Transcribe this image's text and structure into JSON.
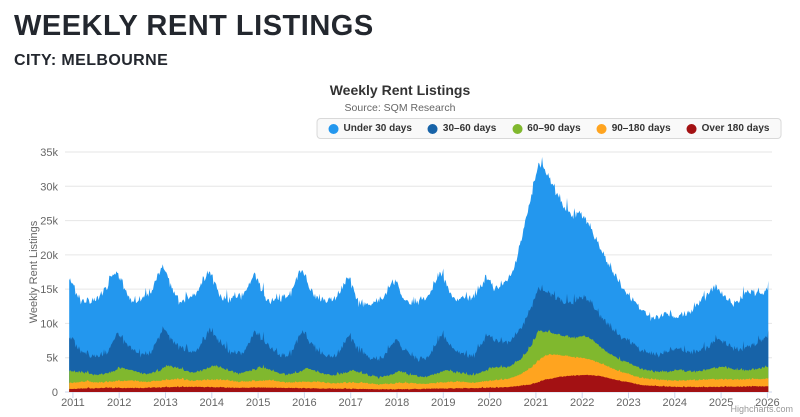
{
  "page": {
    "title": "WEEKLY RENT LISTINGS",
    "subtitle": "CITY: MELBOURNE"
  },
  "chart": {
    "title": "Weekly Rent Listings",
    "subtitle": "Source: SQM Research",
    "credits": "Highcharts.com"
  },
  "chart_data": {
    "type": "area",
    "stacked": true,
    "stack_order": "last series at bottom, first series on top",
    "title": "Weekly Rent Listings",
    "subtitle": "Source: SQM Research",
    "xlabel": "",
    "ylabel": "Weekly Rent Listings",
    "ylim": [
      0,
      35000
    ],
    "y_tick_labels": [
      "0",
      "5k",
      "10k",
      "15k",
      "20k",
      "25k",
      "30k",
      "35k"
    ],
    "x_tick_labels": [
      "2011",
      "2012",
      "2013",
      "2014",
      "2015",
      "2016",
      "2017",
      "2018",
      "2019",
      "2020",
      "2021",
      "2022",
      "2023",
      "2024",
      "2025",
      "2026"
    ],
    "x_range_years": [
      2010.92,
      2026.02
    ],
    "grid": true,
    "legend_position": "top",
    "value_unit": "thousands of listings, weekly data",
    "colors": {
      "grid": "#e6e6e6",
      "axis": "#ccd6eb",
      "axis_text": "#666666"
    },
    "series": [
      {
        "name": "Under 30 days",
        "color": "#2397ee",
        "noise": 0.35,
        "keyframes": [
          [
            2010.92,
            8.6
          ],
          [
            2011.0,
            8.0
          ],
          [
            2011.2,
            7.2
          ],
          [
            2011.5,
            8.3
          ],
          [
            2011.85,
            10.0
          ],
          [
            2012.0,
            8.5
          ],
          [
            2012.25,
            6.7
          ],
          [
            2012.55,
            8.5
          ],
          [
            2012.9,
            9.4
          ],
          [
            2013.05,
            8.2
          ],
          [
            2013.3,
            6.5
          ],
          [
            2013.6,
            8.3
          ],
          [
            2013.9,
            8.8
          ],
          [
            2014.2,
            6.5
          ],
          [
            2014.5,
            8.3
          ],
          [
            2014.9,
            8.5
          ],
          [
            2015.2,
            6.3
          ],
          [
            2015.5,
            8.4
          ],
          [
            2015.9,
            9.2
          ],
          [
            2016.2,
            7.4
          ],
          [
            2016.5,
            8.2
          ],
          [
            2016.9,
            8.7
          ],
          [
            2017.2,
            6.7
          ],
          [
            2017.5,
            8.3
          ],
          [
            2017.9,
            9.0
          ],
          [
            2018.2,
            7.0
          ],
          [
            2018.5,
            8.6
          ],
          [
            2018.9,
            9.2
          ],
          [
            2019.2,
            7.25
          ],
          [
            2019.5,
            8.4
          ],
          [
            2019.9,
            8.6
          ],
          [
            2020.1,
            7.4
          ],
          [
            2020.35,
            8.8
          ],
          [
            2020.55,
            10.3
          ],
          [
            2020.75,
            14.0
          ],
          [
            2020.9,
            16.2
          ],
          [
            2021.05,
            18.1
          ],
          [
            2021.15,
            18.0
          ],
          [
            2021.3,
            16.7
          ],
          [
            2021.45,
            15.2
          ],
          [
            2021.6,
            13.8
          ],
          [
            2021.8,
            12.7
          ],
          [
            2021.95,
            12.4
          ],
          [
            2022.1,
            11.35
          ],
          [
            2022.3,
            10.1
          ],
          [
            2022.5,
            9.2
          ],
          [
            2022.75,
            7.9
          ],
          [
            2022.95,
            6.8
          ],
          [
            2023.2,
            6.0
          ],
          [
            2023.5,
            5.2
          ],
          [
            2023.8,
            5.8
          ],
          [
            2024.05,
            4.4
          ],
          [
            2024.3,
            5.7
          ],
          [
            2024.6,
            7.5
          ],
          [
            2024.85,
            7.9
          ],
          [
            2025.05,
            6.6
          ],
          [
            2025.25,
            6.5
          ],
          [
            2025.5,
            7.85
          ],
          [
            2025.7,
            7.85
          ],
          [
            2025.9,
            6.55
          ],
          [
            2026.02,
            7.1
          ]
        ]
      },
      {
        "name": "30–60 days",
        "color": "#1763a8",
        "noise": 0.5,
        "keyframes": [
          [
            2010.92,
            5.0
          ],
          [
            2011.0,
            4.5
          ],
          [
            2011.15,
            3.2
          ],
          [
            2011.4,
            2.6
          ],
          [
            2011.7,
            2.8
          ],
          [
            2011.95,
            5.2
          ],
          [
            2012.1,
            3.8
          ],
          [
            2012.4,
            2.7
          ],
          [
            2012.7,
            3.0
          ],
          [
            2012.95,
            5.8
          ],
          [
            2013.1,
            4.0
          ],
          [
            2013.4,
            2.8
          ],
          [
            2013.7,
            3.0
          ],
          [
            2013.95,
            5.6
          ],
          [
            2014.1,
            4.0
          ],
          [
            2014.4,
            2.8
          ],
          [
            2014.7,
            3.0
          ],
          [
            2014.95,
            5.5
          ],
          [
            2015.1,
            3.9
          ],
          [
            2015.4,
            2.7
          ],
          [
            2015.7,
            2.9
          ],
          [
            2015.95,
            5.9
          ],
          [
            2016.1,
            4.0
          ],
          [
            2016.4,
            2.7
          ],
          [
            2016.7,
            2.8
          ],
          [
            2016.95,
            5.2
          ],
          [
            2017.1,
            3.6
          ],
          [
            2017.4,
            2.5
          ],
          [
            2017.7,
            2.7
          ],
          [
            2017.95,
            5.0
          ],
          [
            2018.1,
            3.5
          ],
          [
            2018.4,
            2.5
          ],
          [
            2018.7,
            2.8
          ],
          [
            2018.95,
            5.4
          ],
          [
            2019.1,
            3.8
          ],
          [
            2019.4,
            2.7
          ],
          [
            2019.7,
            2.9
          ],
          [
            2019.95,
            5.3
          ],
          [
            2020.1,
            4.0
          ],
          [
            2020.4,
            3.5
          ],
          [
            2020.7,
            4.5
          ],
          [
            2020.9,
            5.5
          ],
          [
            2021.05,
            6.3
          ],
          [
            2021.2,
            5.8
          ],
          [
            2021.4,
            5.3
          ],
          [
            2021.6,
            5.0
          ],
          [
            2021.8,
            5.2
          ],
          [
            2021.95,
            5.8
          ],
          [
            2022.1,
            5.4
          ],
          [
            2022.3,
            4.8
          ],
          [
            2022.6,
            4.0
          ],
          [
            2022.9,
            3.3
          ],
          [
            2023.1,
            3.0
          ],
          [
            2023.4,
            2.6
          ],
          [
            2023.7,
            2.5
          ],
          [
            2023.95,
            3.3
          ],
          [
            2024.1,
            3.0
          ],
          [
            2024.4,
            2.8
          ],
          [
            2024.7,
            3.3
          ],
          [
            2024.95,
            4.2
          ],
          [
            2025.1,
            3.4
          ],
          [
            2025.4,
            3.0
          ],
          [
            2025.7,
            3.4
          ],
          [
            2025.95,
            4.3
          ],
          [
            2026.02,
            4.2
          ]
        ]
      },
      {
        "name": "60–90 days",
        "color": "#80b82e",
        "noise": 0.15,
        "keyframes": [
          [
            2010.92,
            1.8
          ],
          [
            2011.0,
            1.6
          ],
          [
            2011.2,
            1.3
          ],
          [
            2011.5,
            1.1
          ],
          [
            2011.8,
            1.3
          ],
          [
            2012.05,
            1.9
          ],
          [
            2012.3,
            1.4
          ],
          [
            2012.6,
            1.1
          ],
          [
            2012.9,
            1.5
          ],
          [
            2013.05,
            2.1
          ],
          [
            2013.3,
            1.5
          ],
          [
            2013.6,
            1.2
          ],
          [
            2013.9,
            1.6
          ],
          [
            2014.05,
            2.1
          ],
          [
            2014.3,
            1.5
          ],
          [
            2014.6,
            1.2
          ],
          [
            2014.9,
            1.6
          ],
          [
            2015.05,
            2.0
          ],
          [
            2015.3,
            1.4
          ],
          [
            2015.6,
            1.1
          ],
          [
            2015.9,
            1.5
          ],
          [
            2016.05,
            2.0
          ],
          [
            2016.3,
            1.4
          ],
          [
            2016.6,
            1.1
          ],
          [
            2016.9,
            1.4
          ],
          [
            2017.05,
            1.8
          ],
          [
            2017.3,
            1.3
          ],
          [
            2017.6,
            1.0
          ],
          [
            2017.9,
            1.3
          ],
          [
            2018.05,
            1.7
          ],
          [
            2018.3,
            1.2
          ],
          [
            2018.6,
            1.0
          ],
          [
            2018.9,
            1.4
          ],
          [
            2019.05,
            1.8
          ],
          [
            2019.3,
            1.3
          ],
          [
            2019.6,
            1.1
          ],
          [
            2019.9,
            1.5
          ],
          [
            2020.05,
            1.9
          ],
          [
            2020.4,
            1.7
          ],
          [
            2020.7,
            2.2
          ],
          [
            2020.9,
            3.2
          ],
          [
            2021.05,
            4.3
          ],
          [
            2021.2,
            3.5
          ],
          [
            2021.4,
            3.0
          ],
          [
            2021.6,
            2.9
          ],
          [
            2021.85,
            2.8
          ],
          [
            2022.05,
            3.3
          ],
          [
            2022.2,
            3.0
          ],
          [
            2022.5,
            2.1
          ],
          [
            2022.8,
            1.7
          ],
          [
            2023.05,
            1.6
          ],
          [
            2023.3,
            1.3
          ],
          [
            2023.6,
            1.1
          ],
          [
            2023.9,
            1.3
          ],
          [
            2024.05,
            1.6
          ],
          [
            2024.3,
            1.3
          ],
          [
            2024.6,
            1.3
          ],
          [
            2024.9,
            1.7
          ],
          [
            2025.05,
            1.8
          ],
          [
            2025.3,
            1.4
          ],
          [
            2025.6,
            1.3
          ],
          [
            2025.9,
            1.6
          ],
          [
            2026.02,
            1.7
          ]
        ]
      },
      {
        "name": "90–180 days",
        "color": "#ffa41f",
        "noise": 0.1,
        "keyframes": [
          [
            2010.92,
            0.95
          ],
          [
            2011.0,
            0.9
          ],
          [
            2011.3,
            1.0
          ],
          [
            2011.6,
            0.8
          ],
          [
            2012.0,
            1.0
          ],
          [
            2012.3,
            1.1
          ],
          [
            2012.6,
            0.85
          ],
          [
            2013.0,
            1.05
          ],
          [
            2013.3,
            1.15
          ],
          [
            2013.6,
            0.9
          ],
          [
            2014.0,
            1.1
          ],
          [
            2014.3,
            1.1
          ],
          [
            2014.6,
            0.85
          ],
          [
            2015.0,
            1.0
          ],
          [
            2015.3,
            1.05
          ],
          [
            2015.6,
            0.8
          ],
          [
            2016.0,
            0.95
          ],
          [
            2016.3,
            1.0
          ],
          [
            2016.6,
            0.75
          ],
          [
            2017.0,
            0.9
          ],
          [
            2017.3,
            0.9
          ],
          [
            2017.6,
            0.7
          ],
          [
            2018.0,
            0.85
          ],
          [
            2018.3,
            0.9
          ],
          [
            2018.6,
            0.7
          ],
          [
            2019.0,
            0.9
          ],
          [
            2019.3,
            0.95
          ],
          [
            2019.6,
            0.8
          ],
          [
            2020.0,
            1.0
          ],
          [
            2020.4,
            1.2
          ],
          [
            2020.7,
            1.7
          ],
          [
            2020.9,
            2.4
          ],
          [
            2021.1,
            3.3
          ],
          [
            2021.3,
            3.6
          ],
          [
            2021.5,
            3.2
          ],
          [
            2021.8,
            2.7
          ],
          [
            2022.0,
            2.5
          ],
          [
            2022.2,
            2.2
          ],
          [
            2022.5,
            1.7
          ],
          [
            2022.8,
            1.4
          ],
          [
            2023.1,
            1.1
          ],
          [
            2023.5,
            0.95
          ],
          [
            2024.0,
            0.9
          ],
          [
            2024.5,
            1.0
          ],
          [
            2024.8,
            1.15
          ],
          [
            2025.2,
            1.0
          ],
          [
            2025.6,
            1.05
          ],
          [
            2026.02,
            1.15
          ]
        ]
      },
      {
        "name": "Over 180 days",
        "color": "#a31113",
        "noise": 0.07,
        "keyframes": [
          [
            2010.92,
            0.45
          ],
          [
            2011.0,
            0.45
          ],
          [
            2011.5,
            0.55
          ],
          [
            2012.0,
            0.6
          ],
          [
            2012.5,
            0.6
          ],
          [
            2013.0,
            0.7
          ],
          [
            2013.5,
            0.75
          ],
          [
            2014.0,
            0.7
          ],
          [
            2014.5,
            0.6
          ],
          [
            2015.0,
            0.65
          ],
          [
            2015.5,
            0.6
          ],
          [
            2016.0,
            0.55
          ],
          [
            2016.5,
            0.5
          ],
          [
            2017.0,
            0.45
          ],
          [
            2017.5,
            0.4
          ],
          [
            2018.0,
            0.4
          ],
          [
            2018.5,
            0.45
          ],
          [
            2019.0,
            0.5
          ],
          [
            2019.5,
            0.55
          ],
          [
            2020.0,
            0.6
          ],
          [
            2020.4,
            0.7
          ],
          [
            2020.8,
            1.0
          ],
          [
            2021.0,
            1.3
          ],
          [
            2021.2,
            1.8
          ],
          [
            2021.5,
            2.2
          ],
          [
            2021.8,
            2.4
          ],
          [
            2022.1,
            2.5
          ],
          [
            2022.4,
            2.3
          ],
          [
            2022.7,
            1.8
          ],
          [
            2023.0,
            1.4
          ],
          [
            2023.3,
            1.0
          ],
          [
            2023.6,
            0.85
          ],
          [
            2024.0,
            0.75
          ],
          [
            2024.5,
            0.7
          ],
          [
            2025.0,
            0.75
          ],
          [
            2025.5,
            0.8
          ],
          [
            2026.02,
            0.85
          ]
        ]
      }
    ]
  }
}
